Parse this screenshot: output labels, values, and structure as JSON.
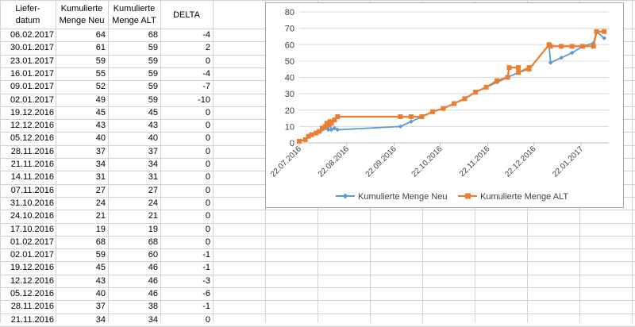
{
  "sheet": {
    "headers": {
      "liefer_line1": "Liefer-",
      "liefer_line2": "datum",
      "neu_line1": "Kumulierte",
      "neu_line2": "Menge Neu",
      "alt_line1": "Kumulierte",
      "alt_line2": "Menge ALT",
      "delta": "DELTA"
    },
    "rows": [
      [
        "06.02.2017",
        "64",
        "68",
        "-4"
      ],
      [
        "30.01.2017",
        "61",
        "59",
        "2"
      ],
      [
        "23.01.2017",
        "59",
        "59",
        "0"
      ],
      [
        "16.01.2017",
        "55",
        "59",
        "-4"
      ],
      [
        "09.01.2017",
        "52",
        "59",
        "-7"
      ],
      [
        "02.01.2017",
        "49",
        "59",
        "-10"
      ],
      [
        "19.12.2016",
        "45",
        "45",
        "0"
      ],
      [
        "12.12.2016",
        "43",
        "43",
        "0"
      ],
      [
        "05.12.2016",
        "40",
        "40",
        "0"
      ],
      [
        "28.11.2016",
        "37",
        "37",
        "0"
      ],
      [
        "21.11.2016",
        "34",
        "34",
        "0"
      ],
      [
        "14.11.2016",
        "31",
        "31",
        "0"
      ],
      [
        "07.11.2016",
        "27",
        "27",
        "0"
      ],
      [
        "31.10.2016",
        "24",
        "24",
        "0"
      ],
      [
        "24.10.2016",
        "21",
        "21",
        "0"
      ],
      [
        "17.10.2016",
        "19",
        "19",
        "0"
      ],
      [
        "01.02.2017",
        "68",
        "68",
        "0"
      ],
      [
        "02.01.2017",
        "59",
        "60",
        "-1"
      ],
      [
        "19.12.2016",
        "45",
        "46",
        "-1"
      ],
      [
        "12.12.2016",
        "43",
        "46",
        "-3"
      ],
      [
        "05.12.2016",
        "40",
        "46",
        "-6"
      ],
      [
        "28.11.2016",
        "37",
        "38",
        "-1"
      ],
      [
        "21.11.2016",
        "34",
        "34",
        "0"
      ]
    ]
  },
  "chart_data": {
    "type": "line",
    "ylim": [
      0,
      80
    ],
    "yticks": [
      "0",
      "10",
      "20",
      "30",
      "40",
      "50",
      "60",
      "70",
      "80"
    ],
    "xlim": [
      "2016-07-22",
      "2017-02-09"
    ],
    "xticks": [
      "2016-07-22",
      "2016-08-22",
      "2016-09-22",
      "2016-10-22",
      "2016-11-22",
      "2016-12-22",
      "2017-01-22"
    ],
    "xtick_labels": [
      "22.07.2016",
      "22.08.2016",
      "22.09.2016",
      "22.10.2016",
      "22.11.2016",
      "22.12.2016",
      "22.01.2017"
    ],
    "legend_position": "bottom",
    "grid": "horizontal",
    "series": [
      {
        "name": "Kumulierte Menge Neu",
        "color": "#5b9bd5",
        "marker": "diamond",
        "points": [
          [
            "2016-07-22",
            1
          ],
          [
            "2016-07-26",
            2
          ],
          [
            "2016-07-28",
            4
          ],
          [
            "2016-07-30",
            5
          ],
          [
            "2016-08-02",
            6
          ],
          [
            "2016-08-04",
            7
          ],
          [
            "2016-08-06",
            8
          ],
          [
            "2016-08-08",
            9
          ],
          [
            "2016-08-09",
            12
          ],
          [
            "2016-08-10",
            8
          ],
          [
            "2016-08-11",
            12
          ],
          [
            "2016-08-12",
            8
          ],
          [
            "2016-08-14",
            9
          ],
          [
            "2016-08-16",
            8
          ],
          [
            "2016-09-26",
            10
          ],
          [
            "2016-10-03",
            13
          ],
          [
            "2016-10-10",
            16
          ],
          [
            "2016-10-17",
            19
          ],
          [
            "2016-10-24",
            21
          ],
          [
            "2016-10-31",
            24
          ],
          [
            "2016-11-07",
            27
          ],
          [
            "2016-11-14",
            31
          ],
          [
            "2016-11-21",
            34
          ],
          [
            "2016-11-28",
            37
          ],
          [
            "2016-12-05",
            40
          ],
          [
            "2016-12-12",
            43
          ],
          [
            "2016-12-19",
            45
          ],
          [
            "2017-01-01",
            60
          ],
          [
            "2017-01-02",
            49
          ],
          [
            "2017-01-09",
            52
          ],
          [
            "2017-01-16",
            55
          ],
          [
            "2017-01-23",
            59
          ],
          [
            "2017-01-30",
            61
          ],
          [
            "2017-02-01",
            68
          ],
          [
            "2017-02-06",
            64
          ]
        ]
      },
      {
        "name": "Kumulierte Menge ALT",
        "color": "#ed7d31",
        "marker": "square",
        "points": [
          [
            "2016-07-22",
            1
          ],
          [
            "2016-07-26",
            2
          ],
          [
            "2016-07-28",
            4
          ],
          [
            "2016-07-30",
            5
          ],
          [
            "2016-08-02",
            6
          ],
          [
            "2016-08-04",
            7
          ],
          [
            "2016-08-06",
            9
          ],
          [
            "2016-08-08",
            10
          ],
          [
            "2016-08-09",
            12
          ],
          [
            "2016-08-10",
            11
          ],
          [
            "2016-08-11",
            13
          ],
          [
            "2016-08-12",
            12
          ],
          [
            "2016-08-14",
            14
          ],
          [
            "2016-08-16",
            16
          ],
          [
            "2016-09-26",
            16
          ],
          [
            "2016-10-03",
            16
          ],
          [
            "2016-10-10",
            16
          ],
          [
            "2016-10-17",
            19
          ],
          [
            "2016-10-24",
            21
          ],
          [
            "2016-10-31",
            24
          ],
          [
            "2016-11-07",
            27
          ],
          [
            "2016-11-14",
            31
          ],
          [
            "2016-11-21",
            34
          ],
          [
            "2016-11-28",
            38
          ],
          [
            "2016-12-05",
            40
          ],
          [
            "2016-12-06",
            46
          ],
          [
            "2016-12-12",
            46
          ],
          [
            "2016-12-12",
            43
          ],
          [
            "2016-12-19",
            46
          ],
          [
            "2016-12-19",
            45
          ],
          [
            "2017-01-01",
            60
          ],
          [
            "2017-01-02",
            59
          ],
          [
            "2017-01-09",
            59
          ],
          [
            "2017-01-16",
            59
          ],
          [
            "2017-01-23",
            59
          ],
          [
            "2017-01-30",
            59
          ],
          [
            "2017-02-01",
            68
          ],
          [
            "2017-02-06",
            68
          ]
        ]
      }
    ]
  }
}
